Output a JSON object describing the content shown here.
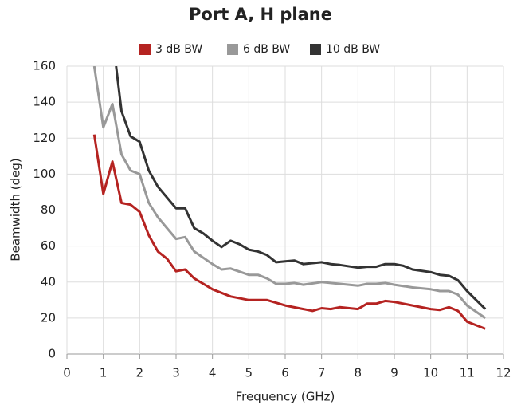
{
  "chart_data": {
    "type": "line",
    "title": "Port A, H plane",
    "xlabel": "Frequency (GHz)",
    "ylabel": "Beamwidth (deg)",
    "xlim": [
      0,
      12
    ],
    "xticks": [
      0,
      1,
      2,
      3,
      4,
      5,
      6,
      7,
      8,
      9,
      10,
      11,
      12
    ],
    "ylim": [
      0,
      160
    ],
    "yticks": [
      0,
      20,
      40,
      60,
      80,
      100,
      120,
      140,
      160
    ],
    "grid": true,
    "legend": "top",
    "series": [
      {
        "name": "3 dB BW",
        "color": "#b52321",
        "x": [
          0.75,
          1.0,
          1.25,
          1.5,
          1.75,
          2.0,
          2.25,
          2.5,
          2.75,
          3.0,
          3.25,
          3.5,
          4,
          4.5,
          5,
          5.5,
          6,
          6.5,
          6.75,
          7,
          7.25,
          7.5,
          8,
          8.25,
          8.5,
          8.75,
          9,
          9.5,
          10,
          10.25,
          10.5,
          10.75,
          11,
          11.5
        ],
        "values": [
          122,
          89,
          107,
          84,
          83,
          79,
          66,
          57,
          53,
          46,
          47,
          42,
          36,
          32,
          30,
          30,
          27,
          25,
          24,
          25.5,
          25,
          26,
          25,
          28,
          28,
          29.5,
          29,
          27,
          25,
          24.5,
          26,
          24,
          18,
          14
        ]
      },
      {
        "name": "6 dB BW",
        "color": "#999999",
        "x": [
          0.75,
          1.0,
          1.25,
          1.5,
          1.75,
          2,
          2.25,
          2.5,
          2.75,
          3,
          3.25,
          3.5,
          4,
          4.25,
          4.5,
          5,
          5.25,
          5.5,
          5.75,
          6,
          6.25,
          6.5,
          7,
          7.5,
          8,
          8.25,
          8.5,
          8.75,
          9,
          9.5,
          10,
          10.25,
          10.5,
          10.75,
          11,
          11.5
        ],
        "values": [
          160,
          126,
          139,
          111,
          102,
          100,
          84,
          76,
          70,
          64,
          65,
          57,
          50,
          47,
          47.5,
          44,
          44,
          42,
          39,
          39,
          39.5,
          38.5,
          40,
          39,
          38,
          39,
          39,
          39.5,
          38.5,
          37,
          36,
          35,
          35,
          33,
          27,
          20
        ]
      },
      {
        "name": "10 dB BW",
        "color": "#333333",
        "x": [
          1.35,
          1.5,
          1.75,
          2,
          2.25,
          2.5,
          2.75,
          3,
          3.25,
          3.5,
          3.75,
          4,
          4.25,
          4.5,
          4.75,
          5,
          5.25,
          5.5,
          5.75,
          6,
          6.25,
          6.5,
          7,
          7.25,
          7.5,
          8,
          8.25,
          8.5,
          8.75,
          9,
          9.25,
          9.5,
          10,
          10.25,
          10.5,
          10.75,
          11,
          11.5
        ],
        "values": [
          160,
          135,
          121,
          118,
          102,
          93,
          87,
          81,
          81,
          70,
          67,
          63,
          59.5,
          63,
          61,
          58,
          57,
          55,
          51,
          51.5,
          52,
          50,
          51,
          50,
          49.5,
          48,
          48.5,
          48.5,
          50,
          50,
          49,
          47,
          45.5,
          44,
          43.5,
          41,
          35,
          25
        ]
      }
    ]
  }
}
